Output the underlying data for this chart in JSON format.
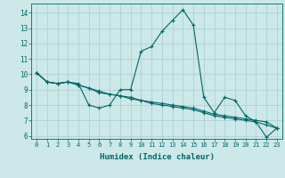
{
  "xlabel": "Humidex (Indice chaleur)",
  "background_color": "#cce8e8",
  "grid_color": "#aacece",
  "line_color": "#006666",
  "xlim": [
    -0.5,
    23.5
  ],
  "ylim": [
    5.8,
    14.6
  ],
  "yticks": [
    6,
    7,
    8,
    9,
    10,
    11,
    12,
    13,
    14
  ],
  "xticks": [
    0,
    1,
    2,
    3,
    4,
    5,
    6,
    7,
    8,
    9,
    10,
    11,
    12,
    13,
    14,
    15,
    16,
    17,
    18,
    19,
    20,
    21,
    22,
    23
  ],
  "series": [
    [
      10.1,
      9.5,
      9.4,
      9.5,
      9.4,
      8.0,
      7.8,
      8.0,
      9.0,
      9.0,
      11.5,
      11.8,
      12.8,
      13.5,
      14.2,
      13.2,
      8.5,
      7.5,
      8.5,
      8.3,
      7.3,
      6.9,
      5.9,
      6.5
    ],
    [
      10.1,
      9.5,
      9.4,
      9.5,
      9.3,
      9.1,
      8.9,
      8.7,
      8.6,
      8.5,
      8.3,
      8.2,
      8.1,
      8.0,
      7.9,
      7.8,
      7.6,
      7.4,
      7.3,
      7.2,
      7.1,
      7.0,
      6.9,
      6.5
    ],
    [
      10.1,
      9.5,
      9.4,
      9.5,
      9.3,
      9.1,
      8.8,
      8.7,
      8.6,
      8.4,
      8.3,
      8.1,
      8.0,
      7.9,
      7.8,
      7.7,
      7.5,
      7.3,
      7.2,
      7.1,
      7.0,
      6.9,
      6.7,
      6.5
    ]
  ]
}
